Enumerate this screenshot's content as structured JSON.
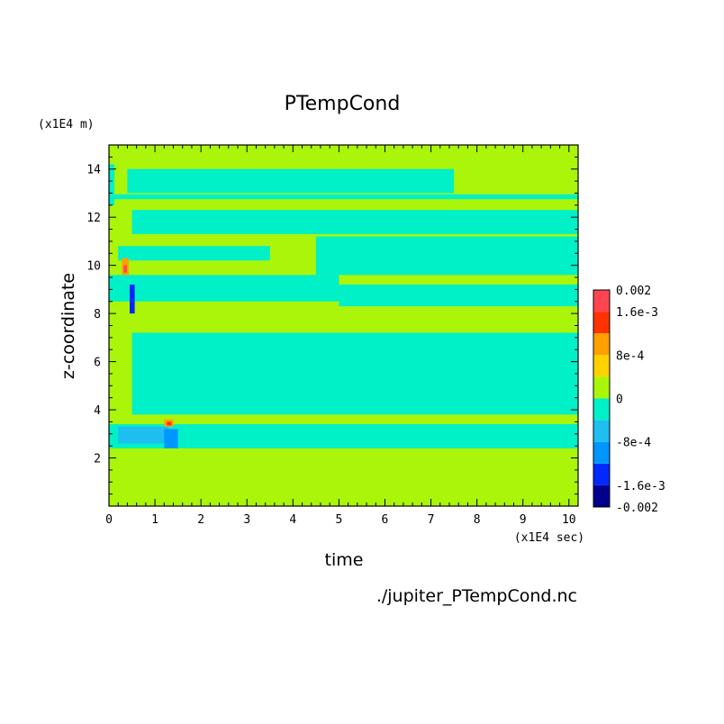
{
  "chart_data": {
    "type": "heatmap",
    "title": "PTempCond",
    "xlabel": "time",
    "ylabel": "z-coordinate",
    "x_unit": "(x1E4 sec)",
    "y_unit": "(x1E4 m)",
    "xlim": [
      0,
      10.2
    ],
    "ylim": [
      0,
      15
    ],
    "x_ticks": [
      "0",
      "1",
      "2",
      "3",
      "4",
      "5",
      "6",
      "7",
      "8",
      "9",
      "10"
    ],
    "y_ticks": [
      "2",
      "4",
      "6",
      "8",
      "10",
      "12",
      "14"
    ],
    "colorbar": {
      "range": [
        -0.002,
        0.002
      ],
      "labels": [
        "0.002",
        "1.6e-3",
        "8e-4",
        "0",
        "-8e-4",
        "-1.6e-3",
        "-0.002"
      ],
      "levels": [
        {
          "from": -0.002,
          "to": -0.0016,
          "color": "#00008c"
        },
        {
          "from": -0.0016,
          "to": -0.0012,
          "color": "#0028ff"
        },
        {
          "from": -0.0012,
          "to": -0.0008,
          "color": "#0096ff"
        },
        {
          "from": -0.0008,
          "to": -0.0004,
          "color": "#1ebef0"
        },
        {
          "from": -0.0004,
          "to": 0.0,
          "color": "#00f0c8"
        },
        {
          "from": 0.0,
          "to": 0.0004,
          "color": "#aaf50a"
        },
        {
          "from": 0.0004,
          "to": 0.0008,
          "color": "#ffd200"
        },
        {
          "from": 0.0008,
          "to": 0.0012,
          "color": "#ffa000"
        },
        {
          "from": 0.0012,
          "to": 0.0016,
          "color": "#ff3200"
        },
        {
          "from": 0.0016,
          "to": 0.002,
          "color": "#ff4650"
        }
      ]
    },
    "background_value": 0.0002,
    "regions": [
      {
        "x": [
          0,
          0.12
        ],
        "y": [
          12.5,
          14.2
        ],
        "value": -0.0002
      },
      {
        "x": [
          0.12,
          10.2
        ],
        "y": [
          12.75,
          12.95
        ],
        "value": -0.0002
      },
      {
        "x": [
          0.4,
          7.5
        ],
        "y": [
          13.0,
          14.0
        ],
        "value": -0.0002
      },
      {
        "x": [
          0.5,
          10.2
        ],
        "y": [
          11.3,
          12.3
        ],
        "value": -0.0002
      },
      {
        "x": [
          4.5,
          10.2
        ],
        "y": [
          9.6,
          11.2
        ],
        "value": -0.0002
      },
      {
        "x": [
          0.2,
          3.5
        ],
        "y": [
          10.2,
          10.8
        ],
        "value": -0.0002
      },
      {
        "x": [
          0.0,
          5.0
        ],
        "y": [
          8.5,
          9.6
        ],
        "value": -0.0002
      },
      {
        "x": [
          5.0,
          10.2
        ],
        "y": [
          8.3,
          9.2
        ],
        "value": -0.0002
      },
      {
        "x": [
          0.5,
          10.2
        ],
        "y": [
          3.8,
          7.2
        ],
        "value": -0.0002
      },
      {
        "x": [
          0.0,
          10.2
        ],
        "y": [
          2.4,
          3.4
        ],
        "value": -0.0002
      },
      {
        "x": [
          0.2,
          1.3
        ],
        "y": [
          2.6,
          3.3
        ],
        "value": -0.0006
      },
      {
        "x": [
          1.2,
          1.5
        ],
        "y": [
          2.4,
          3.2
        ],
        "value": -0.001
      },
      {
        "x": [
          0.45,
          0.56
        ],
        "y": [
          8.0,
          9.2
        ],
        "value": -0.0014
      },
      {
        "x": [
          0.28,
          0.43
        ],
        "y": [
          9.6,
          10.3
        ],
        "value": 0.001
      },
      {
        "x": [
          0.32,
          0.39
        ],
        "y": [
          9.7,
          10.0
        ],
        "value": 0.0018
      },
      {
        "x": [
          1.2,
          1.4
        ],
        "y": [
          3.3,
          3.6
        ],
        "value": 0.001
      },
      {
        "x": [
          1.26,
          1.36
        ],
        "y": [
          3.35,
          3.5
        ],
        "value": 0.0014
      }
    ]
  },
  "file_label": "./jupiter_PTempCond.nc"
}
